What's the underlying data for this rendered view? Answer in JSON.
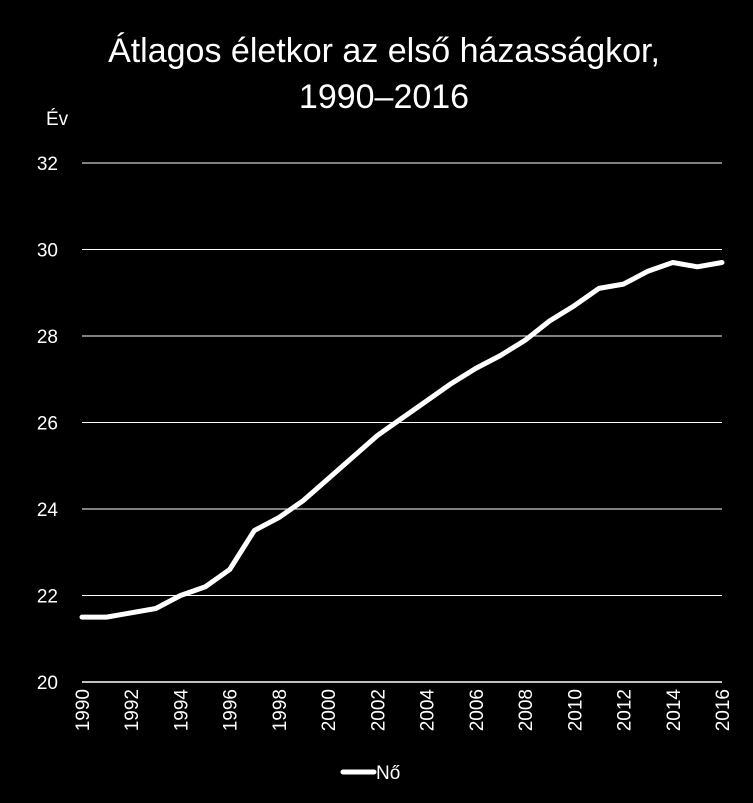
{
  "chart_data": {
    "type": "line",
    "title": "Átlagos életkor az első házasságkor, 1990–2016",
    "title_lines": [
      "Átlagos életkor az első házasságkor,",
      "1990–2016"
    ],
    "ylabel": "Év",
    "xlabel": "",
    "ylim": [
      20,
      32
    ],
    "y_ticks": [
      "20",
      "22",
      "24",
      "26",
      "28",
      "30",
      "32"
    ],
    "x_tick_labels": [
      "1990",
      "1992",
      "1994",
      "1996",
      "1998",
      "2000",
      "2002",
      "2004",
      "2006",
      "2008",
      "2010",
      "2012",
      "2014",
      "2016"
    ],
    "grid": true,
    "legend_position": "bottom",
    "x": [
      1990,
      1991,
      1992,
      1993,
      1994,
      1995,
      1996,
      1997,
      1998,
      1999,
      2000,
      2001,
      2002,
      2003,
      2004,
      2005,
      2006,
      2007,
      2008,
      2009,
      2010,
      2011,
      2012,
      2013,
      2014,
      2015,
      2016
    ],
    "series": [
      {
        "name": "Nő",
        "color": "#ffffff",
        "values": [
          21.5,
          21.5,
          21.6,
          21.7,
          22.0,
          22.2,
          22.6,
          23.5,
          23.8,
          24.2,
          24.7,
          25.2,
          25.7,
          26.1,
          26.5,
          26.9,
          27.25,
          27.55,
          27.9,
          28.35,
          28.7,
          29.1,
          29.2,
          29.5,
          29.7,
          29.6,
          29.7
        ]
      }
    ]
  }
}
